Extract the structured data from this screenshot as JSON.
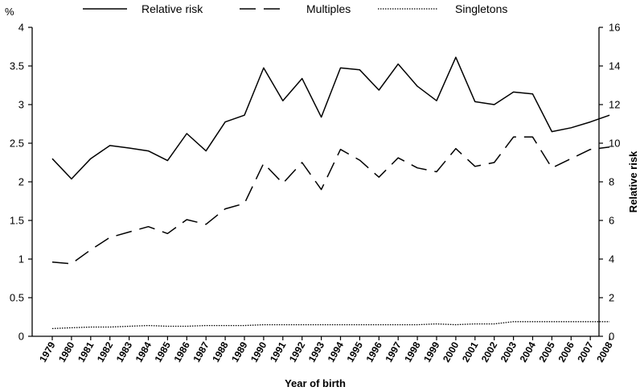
{
  "chart_data": {
    "type": "line",
    "left_axis_label": "%",
    "right_axis_label": "Relative risk",
    "xlabel": "Year of birth",
    "left_ylim": [
      0,
      4
    ],
    "right_ylim": [
      0,
      16
    ],
    "left_ticks": [
      "0",
      "0.5",
      "1",
      "1.5",
      "2",
      "2.5",
      "3",
      "3.5",
      "4"
    ],
    "right_ticks": [
      "0",
      "2",
      "4",
      "6",
      "8",
      "10",
      "12",
      "14",
      "16"
    ],
    "legend_position": "top",
    "categories": [
      "1979",
      "1980",
      "1981",
      "1982",
      "1983",
      "1984",
      "1985",
      "1986",
      "1987",
      "1988",
      "1989",
      "1990",
      "1991",
      "1992",
      "1993",
      "1994",
      "1995",
      "1996",
      "1997",
      "1998",
      "1999",
      "2000",
      "2001",
      "2002",
      "2003",
      "2004",
      "2005",
      "2006",
      "2007",
      "2008"
    ],
    "series": [
      {
        "name": "Relative risk",
        "axis": "right",
        "style": "solid",
        "values": [
          9.2,
          8.15,
          9.2,
          9.88,
          9.75,
          9.6,
          9.1,
          10.5,
          9.6,
          11.1,
          11.45,
          13.9,
          12.2,
          13.35,
          11.35,
          13.9,
          13.8,
          12.75,
          14.1,
          12.95,
          12.2,
          14.45,
          12.15,
          12.0,
          12.65,
          12.55,
          10.6,
          10.8,
          11.1,
          11.45
        ]
      },
      {
        "name": "Multiples",
        "axis": "left",
        "style": "dashed",
        "values": [
          0.96,
          0.94,
          1.12,
          1.28,
          1.35,
          1.42,
          1.33,
          1.51,
          1.45,
          1.65,
          1.72,
          2.24,
          1.98,
          2.25,
          1.9,
          2.42,
          2.28,
          2.06,
          2.31,
          2.18,
          2.13,
          2.43,
          2.2,
          2.25,
          2.58,
          2.58,
          2.18,
          2.3,
          2.42,
          2.45
        ]
      },
      {
        "name": "Singletons",
        "axis": "left",
        "style": "dotted",
        "values": [
          0.1,
          0.11,
          0.12,
          0.12,
          0.13,
          0.14,
          0.13,
          0.13,
          0.14,
          0.14,
          0.14,
          0.15,
          0.15,
          0.15,
          0.15,
          0.15,
          0.15,
          0.15,
          0.15,
          0.15,
          0.16,
          0.15,
          0.16,
          0.16,
          0.19,
          0.19,
          0.19,
          0.19,
          0.19,
          0.19
        ]
      }
    ]
  }
}
